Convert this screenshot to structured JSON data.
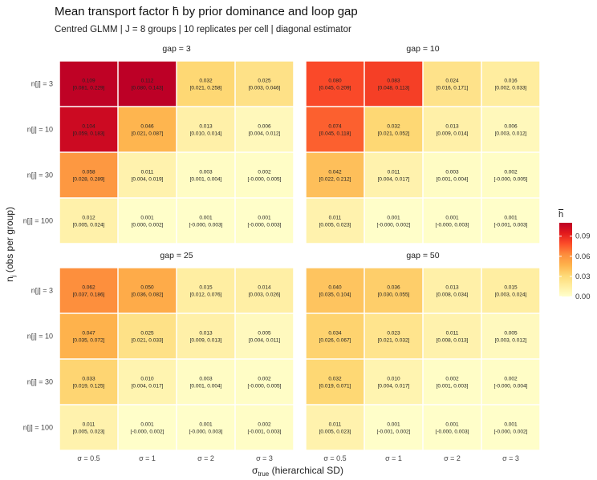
{
  "title": "Mean transport factor h̄ by prior dominance and loop gap",
  "subtitle": "Centred GLMM  |  J = 8 groups  |  10 replicates per cell  |  diagonal estimator",
  "chart_data": {
    "type": "heatmap",
    "xlabel_main": "σ",
    "xlabel_sub": "true",
    "xlabel_rest": " (hierarchical SD)",
    "ylabel_main": "n",
    "ylabel_sub": "j",
    "ylabel_rest": " (obs per group)",
    "columns": [
      "σ = 0.5",
      "σ = 1",
      "σ = 2",
      "σ = 3"
    ],
    "rows": [
      "n[j] = 3",
      "n[j] = 10",
      "n[j] = 30",
      "n[j] = 100"
    ],
    "legend": {
      "title": "h",
      "ticks": [
        "0.09",
        "0.06",
        "0.03",
        "0.00"
      ],
      "tick_values": [
        0.09,
        0.06,
        0.03,
        0.0
      ],
      "range": [
        0,
        0.11
      ],
      "colors": [
        "#ffffcc",
        "#ffeda0",
        "#fed976",
        "#feb24c",
        "#fd8d3c",
        "#fc4e2a",
        "#e31a1c",
        "#bd0026"
      ]
    },
    "panels": [
      {
        "label": "gap = 3",
        "values": [
          [
            0.109,
            0.112,
            0.032,
            0.025
          ],
          [
            0.104,
            0.046,
            0.013,
            0.006
          ],
          [
            0.058,
            0.011,
            0.003,
            0.002
          ],
          [
            0.012,
            0.001,
            0.001,
            0.001
          ]
        ],
        "ci": [
          [
            "[0.081, 0.229]",
            "[0.080, 0.143]",
            "[0.021, 0.258]",
            "[0.003, 0.046]"
          ],
          [
            "[0.059, 0.183]",
            "[0.021, 0.087]",
            "[0.010, 0.014]",
            "[0.004, 0.012]"
          ],
          [
            "[0.028, 0.289]",
            "[0.004, 0.019]",
            "[0.001, 0.004]",
            "[-0.000, 0.005]"
          ],
          [
            "[0.005, 0.024]",
            "[0.000, 0.002]",
            "[-0.000, 0.003]",
            "[-0.000, 0.003]"
          ]
        ]
      },
      {
        "label": "gap = 10",
        "values": [
          [
            0.08,
            0.083,
            0.024,
            0.016
          ],
          [
            0.074,
            0.032,
            0.013,
            0.006
          ],
          [
            0.042,
            0.011,
            0.003,
            0.002
          ],
          [
            0.011,
            0.001,
            0.001,
            0.001
          ]
        ],
        "ci": [
          [
            "[0.045, 0.209]",
            "[0.048, 0.113]",
            "[0.016, 0.171]",
            "[0.002, 0.033]"
          ],
          [
            "[0.045, 0.118]",
            "[0.021, 0.052]",
            "[0.009, 0.014]",
            "[0.003, 0.012]"
          ],
          [
            "[0.022, 0.212]",
            "[0.004, 0.017]",
            "[0.001, 0.004]",
            "[-0.000, 0.005]"
          ],
          [
            "[0.005, 0.023]",
            "[-0.000, 0.002]",
            "[-0.000, 0.003]",
            "[-0.001, 0.003]"
          ]
        ]
      },
      {
        "label": "gap = 25",
        "values": [
          [
            0.062,
            0.05,
            0.015,
            0.014
          ],
          [
            0.047,
            0.025,
            0.013,
            0.005
          ],
          [
            0.033,
            0.01,
            0.003,
            0.002
          ],
          [
            0.011,
            0.001,
            0.001,
            0.002
          ]
        ],
        "ci": [
          [
            "[0.037, 0.186]",
            "[0.036, 0.082]",
            "[0.012, 0.076]",
            "[0.003, 0.026]"
          ],
          [
            "[0.035, 0.072]",
            "[0.021, 0.033]",
            "[0.009, 0.013]",
            "[0.004, 0.011]"
          ],
          [
            "[0.019, 0.125]",
            "[0.004, 0.017]",
            "[0.001, 0.004]",
            "[-0.000, 0.005]"
          ],
          [
            "[0.005, 0.023]",
            "[-0.000, 0.002]",
            "[-0.000, 0.003]",
            "[-0.001, 0.003]"
          ]
        ]
      },
      {
        "label": "gap = 50",
        "values": [
          [
            0.04,
            0.036,
            0.013,
            0.015
          ],
          [
            0.034,
            0.023,
            0.011,
            0.005
          ],
          [
            0.032,
            0.01,
            0.002,
            0.002
          ],
          [
            0.011,
            0.001,
            0.001,
            0.001
          ]
        ],
        "ci": [
          [
            "[0.035, 0.104]",
            "[0.030, 0.055]",
            "[0.008, 0.034]",
            "[0.003, 0.024]"
          ],
          [
            "[0.026, 0.067]",
            "[0.021, 0.032]",
            "[0.008, 0.013]",
            "[0.003, 0.012]"
          ],
          [
            "[0.019, 0.071]",
            "[0.004, 0.017]",
            "[0.001, 0.003]",
            "[-0.000, 0.004]"
          ],
          [
            "[0.005, 0.023]",
            "[-0.001, 0.002]",
            "[-0.000, 0.003]",
            "[-0.000, 0.002]"
          ]
        ]
      }
    ]
  }
}
